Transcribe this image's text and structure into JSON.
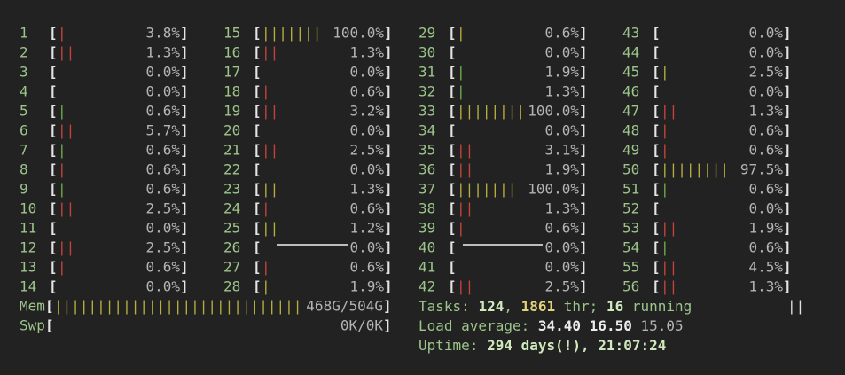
{
  "brackets": [
    "[",
    "]"
  ],
  "palette": {
    "r": "#c8423a",
    "g": "#6fae4a",
    "y": "#b9ae3c"
  },
  "cpus": [
    [
      1,
      "3.8%",
      "|",
      "r"
    ],
    [
      2,
      "1.3%",
      "||",
      "r"
    ],
    [
      3,
      "0.0%"
    ],
    [
      4,
      "0.0%"
    ],
    [
      5,
      "0.6%",
      "|",
      "g"
    ],
    [
      6,
      "5.7%",
      "||",
      "r"
    ],
    [
      7,
      "0.6%",
      "|",
      "g"
    ],
    [
      8,
      "0.6%",
      "|",
      "r"
    ],
    [
      9,
      "0.6%",
      "|",
      "g"
    ],
    [
      10,
      "2.5%",
      "||",
      "r"
    ],
    [
      11,
      "0.0%"
    ],
    [
      12,
      "2.5%",
      "||",
      "r"
    ],
    [
      13,
      "0.6%",
      "|",
      "r"
    ],
    [
      14,
      "0.0%"
    ],
    [
      15,
      "100.0%",
      "|||||||",
      "y"
    ],
    [
      16,
      "1.3%",
      "||",
      "r"
    ],
    [
      17,
      "0.0%"
    ],
    [
      18,
      "0.6%",
      "|",
      "r"
    ],
    [
      19,
      "3.2%",
      "||",
      "r"
    ],
    [
      20,
      "0.0%"
    ],
    [
      21,
      "2.5%",
      "||",
      "r"
    ],
    [
      22,
      "0.0%"
    ],
    [
      23,
      "1.3%",
      "||",
      "y"
    ],
    [
      24,
      "0.6%",
      "|",
      "r"
    ],
    [
      25,
      "1.2%",
      "||",
      "y"
    ],
    [
      26,
      "0.0%"
    ],
    [
      27,
      "0.6%",
      "|",
      "r"
    ],
    [
      28,
      "1.9%",
      "|",
      "y"
    ],
    [
      29,
      "0.6%",
      "|",
      "y"
    ],
    [
      30,
      "0.0%"
    ],
    [
      31,
      "1.9%",
      "|",
      "g"
    ],
    [
      32,
      "1.3%",
      "|",
      "g"
    ],
    [
      33,
      "100.0%",
      "||||||||",
      "y"
    ],
    [
      34,
      "0.0%"
    ],
    [
      35,
      "3.1%",
      "||",
      "r"
    ],
    [
      36,
      "1.9%",
      "||",
      "r"
    ],
    [
      37,
      "100.0%",
      "|||||||",
      "y"
    ],
    [
      38,
      "1.3%",
      "||",
      "r"
    ],
    [
      39,
      "0.6%",
      "|",
      "r"
    ],
    [
      40,
      "0.0%"
    ],
    [
      41,
      "0.0%"
    ],
    [
      42,
      "2.5%",
      "||",
      "r"
    ],
    [
      43,
      "0.0%"
    ],
    [
      44,
      "0.0%"
    ],
    [
      45,
      "2.5%",
      "|",
      "y"
    ],
    [
      46,
      "0.0%"
    ],
    [
      47,
      "1.3%",
      "||",
      "r"
    ],
    [
      48,
      "0.6%",
      "|",
      "r"
    ],
    [
      49,
      "0.6%",
      "|",
      "r"
    ],
    [
      50,
      "97.5%",
      "||||||||",
      "y"
    ],
    [
      51,
      "0.6%",
      "|",
      "g"
    ],
    [
      52,
      "0.0%"
    ],
    [
      53,
      "1.9%",
      "||",
      "r"
    ],
    [
      54,
      "0.6%",
      "|",
      "g"
    ],
    [
      55,
      "4.5%",
      "||",
      "r"
    ],
    [
      56,
      "1.3%",
      "||",
      "r"
    ]
  ],
  "memory": [
    {
      "label": "Mem",
      "bar": "|||||||||||||||||||||||||||||",
      "value": "468G/504G",
      "color": "y"
    },
    {
      "label": "Swp",
      "value": "0K/0K"
    }
  ],
  "summary": [
    [
      {
        "t": "Tasks: "
      },
      {
        "t": "124",
        "s": "b"
      },
      {
        "t": ", "
      },
      {
        "t": "1861",
        "s": "y"
      },
      {
        "t": " thr; "
      },
      {
        "t": "16",
        "s": "b"
      },
      {
        "t": " running"
      }
    ],
    [
      {
        "t": "Load average: "
      },
      {
        "t": "34.40",
        "s": "w"
      },
      {
        "t": " "
      },
      {
        "t": "16.50",
        "s": "w"
      },
      {
        "t": " 15.05",
        "s": "n"
      }
    ],
    [
      {
        "t": "Uptime: "
      },
      {
        "t": "294 days(!), 21:07:24",
        "s": "b"
      }
    ]
  ],
  "right_marker": "||"
}
